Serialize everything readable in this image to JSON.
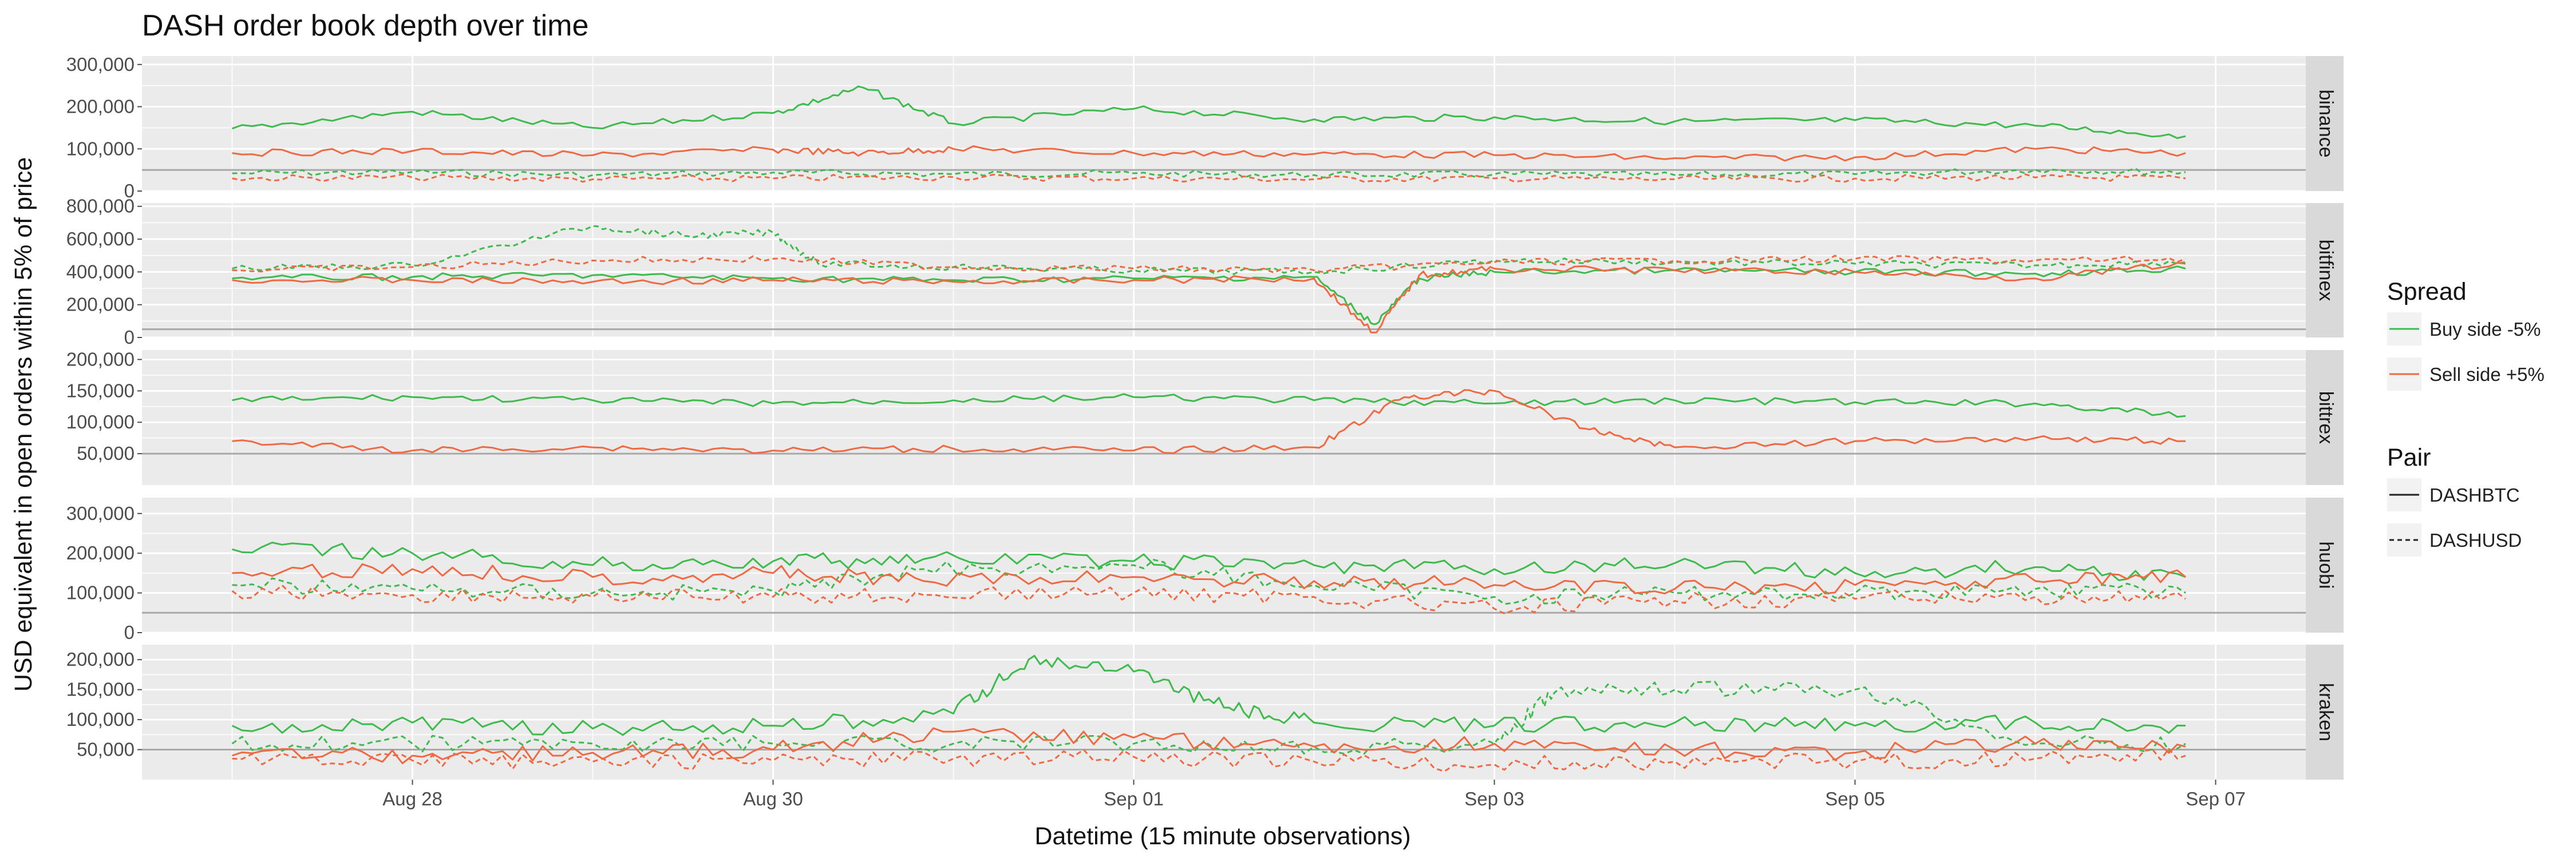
{
  "chart_data": {
    "type": "line",
    "title": "DASH  order book depth over time",
    "xlabel": "Datetime (15 minute observations)",
    "ylabel": "USD equivalent in open orders within 5% of price",
    "x_range": [
      "2018-08-26T12:00",
      "2018-09-07T12:00"
    ],
    "x_ticks": [
      {
        "date": "2018-08-28",
        "label": "Aug 28"
      },
      {
        "date": "2018-08-30",
        "label": "Aug 30"
      },
      {
        "date": "2018-09-01",
        "label": "Sep 01"
      },
      {
        "date": "2018-09-03",
        "label": "Sep 03"
      },
      {
        "date": "2018-09-05",
        "label": "Sep 05"
      },
      {
        "date": "2018-09-07",
        "label": "Sep 07"
      }
    ],
    "reference_line": 50000,
    "colors": {
      "buy": "#3dbb4d",
      "sell": "#ef6a43",
      "reference": "#a8a8a8"
    },
    "legend": {
      "spread_title": "Spread",
      "spread_items": [
        {
          "key": "buy",
          "label": "Buy side -5%"
        },
        {
          "key": "sell",
          "label": "Sell side +5%"
        }
      ],
      "pair_title": "Pair",
      "pair_items": [
        {
          "key": "solid",
          "label": "DASHBTC"
        },
        {
          "key": "dashed",
          "label": "DASHUSD"
        }
      ]
    },
    "panels": [
      {
        "exchange": "binance",
        "ylim": [
          0,
          320000
        ],
        "yticks": [
          0,
          100000,
          200000,
          300000
        ],
        "ytick_labels": [
          "0",
          "100,000",
          "200,000",
          "300,000"
        ],
        "series": [
          {
            "spread": "buy",
            "pair": "DASHBTC",
            "x": [
              "2018-08-27",
              "2018-08-28",
              "2018-08-29",
              "2018-08-30",
              "2018-08-30T12:00",
              "2018-08-31",
              "2018-09-01",
              "2018-09-02",
              "2018-09-03",
              "2018-09-04",
              "2018-09-05",
              "2018-09-06",
              "2018-09-06T20:00"
            ],
            "y": [
              148000,
              188000,
              150000,
              185000,
              245000,
              160000,
              195000,
              170000,
              175000,
              165000,
              168000,
              155000,
              130000
            ]
          },
          {
            "spread": "sell",
            "pair": "DASHBTC",
            "x": [
              "2018-08-27",
              "2018-08-28",
              "2018-08-29",
              "2018-08-30",
              "2018-08-30T12:00",
              "2018-08-31",
              "2018-09-01",
              "2018-09-02",
              "2018-09-03",
              "2018-09-04",
              "2018-09-05",
              "2018-09-06",
              "2018-09-06T20:00"
            ],
            "y": [
              90000,
              95000,
              85000,
              98000,
              90000,
              100000,
              90000,
              88000,
              85000,
              78000,
              80000,
              100000,
              90000
            ]
          },
          {
            "spread": "buy",
            "pair": "DASHUSD",
            "x": [
              "2018-08-27",
              "2018-08-28",
              "2018-08-29",
              "2018-08-30",
              "2018-08-31",
              "2018-09-01",
              "2018-09-02",
              "2018-09-03",
              "2018-09-04",
              "2018-09-05",
              "2018-09-06",
              "2018-09-06T20:00"
            ],
            "y": [
              42000,
              45000,
              38000,
              44000,
              40000,
              42000,
              38000,
              40000,
              38000,
              40000,
              50000,
              45000
            ]
          },
          {
            "spread": "sell",
            "pair": "DASHUSD",
            "x": [
              "2018-08-27",
              "2018-08-28",
              "2018-08-29",
              "2018-08-30",
              "2018-08-31",
              "2018-09-01",
              "2018-09-02",
              "2018-09-03",
              "2018-09-04",
              "2018-09-05",
              "2018-09-06",
              "2018-09-06T20:00"
            ],
            "y": [
              30000,
              32000,
              28000,
              30000,
              33000,
              30000,
              28000,
              30000,
              28000,
              30000,
              32000,
              30000
            ]
          }
        ]
      },
      {
        "exchange": "bitfinex",
        "ylim": [
          0,
          820000
        ],
        "yticks": [
          0,
          200000,
          400000,
          600000,
          800000
        ],
        "ytick_labels": [
          "0",
          "200,000",
          "400,000",
          "600,000",
          "800,000"
        ],
        "series": [
          {
            "spread": "buy",
            "pair": "DASHBTC",
            "x": [
              "2018-08-27",
              "2018-08-28",
              "2018-08-29",
              "2018-08-30",
              "2018-08-31",
              "2018-09-01",
              "2018-09-02",
              "2018-09-02T08:00",
              "2018-09-02T14:00",
              "2018-09-03",
              "2018-09-04",
              "2018-09-05",
              "2018-09-06",
              "2018-09-06T20:00"
            ],
            "y": [
              360000,
              370000,
              380000,
              360000,
              350000,
              360000,
              370000,
              80000,
              360000,
              400000,
              410000,
              400000,
              390000,
              420000
            ]
          },
          {
            "spread": "sell",
            "pair": "DASHBTC",
            "x": [
              "2018-08-27",
              "2018-08-28",
              "2018-08-29",
              "2018-08-30",
              "2018-08-31",
              "2018-09-01",
              "2018-09-02",
              "2018-09-02T08:00",
              "2018-09-02T14:00",
              "2018-09-03",
              "2018-09-04",
              "2018-09-05",
              "2018-09-06",
              "2018-09-06T20:00"
            ],
            "y": [
              350000,
              350000,
              340000,
              350000,
              340000,
              350000,
              360000,
              30000,
              380000,
              420000,
              410000,
              400000,
              360000,
              450000
            ]
          },
          {
            "spread": "buy",
            "pair": "DASHUSD",
            "x": [
              "2018-08-27",
              "2018-08-28",
              "2018-08-29",
              "2018-08-29T12:00",
              "2018-08-30",
              "2018-08-30T06:00",
              "2018-08-31",
              "2018-09-01",
              "2018-09-02",
              "2018-09-03",
              "2018-09-04",
              "2018-09-05",
              "2018-09-06",
              "2018-09-06T20:00"
            ],
            "y": [
              420000,
              440000,
              680000,
              620000,
              640000,
              450000,
              430000,
              410000,
              400000,
              470000,
              460000,
              450000,
              440000,
              460000
            ]
          },
          {
            "spread": "sell",
            "pair": "DASHUSD",
            "x": [
              "2018-08-27",
              "2018-08-28",
              "2018-08-29",
              "2018-08-30",
              "2018-08-31",
              "2018-09-01",
              "2018-09-02",
              "2018-09-03",
              "2018-09-04",
              "2018-09-05",
              "2018-09-06",
              "2018-09-06T20:00"
            ],
            "y": [
              410000,
              430000,
              470000,
              480000,
              430000,
              420000,
              410000,
              460000,
              470000,
              480000,
              470000,
              480000
            ]
          }
        ]
      },
      {
        "exchange": "bittrex",
        "ylim": [
          0,
          215000
        ],
        "yticks": [
          50000,
          100000,
          150000,
          200000
        ],
        "ytick_labels": [
          "50,000",
          "100,000",
          "150,000",
          "200,000"
        ],
        "series": [
          {
            "spread": "buy",
            "pair": "DASHBTC",
            "x": [
              "2018-08-27",
              "2018-08-28",
              "2018-08-29",
              "2018-08-30",
              "2018-08-31",
              "2018-09-01",
              "2018-09-02",
              "2018-09-03",
              "2018-09-04",
              "2018-09-05",
              "2018-09-06",
              "2018-09-06T20:00"
            ],
            "y": [
              135000,
              140000,
              135000,
              130000,
              135000,
              140000,
              135000,
              130000,
              135000,
              132000,
              130000,
              110000
            ]
          },
          {
            "spread": "sell",
            "pair": "DASHBTC",
            "x": [
              "2018-08-27",
              "2018-08-28",
              "2018-08-29",
              "2018-08-30",
              "2018-08-31",
              "2018-09-01",
              "2018-09-02",
              "2018-09-02T12:00",
              "2018-09-03",
              "2018-09-03T12:00",
              "2018-09-04",
              "2018-09-05",
              "2018-09-06",
              "2018-09-06T20:00"
            ],
            "y": [
              70000,
              55000,
              60000,
              55000,
              58000,
              55000,
              60000,
              140000,
              150000,
              90000,
              60000,
              70000,
              75000,
              70000
            ]
          }
        ]
      },
      {
        "exchange": "huobi",
        "ylim": [
          0,
          340000
        ],
        "yticks": [
          0,
          100000,
          200000,
          300000
        ],
        "ytick_labels": [
          "0",
          "100,000",
          "200,000",
          "300,000"
        ],
        "series": [
          {
            "spread": "buy",
            "pair": "DASHBTC",
            "x": [
              "2018-08-27",
              "2018-08-28",
              "2018-08-29",
              "2018-08-30",
              "2018-08-30T20:00",
              "2018-09-01",
              "2018-09-02",
              "2018-09-03",
              "2018-09-04",
              "2018-09-05",
              "2018-09-06",
              "2018-09-06T20:00"
            ],
            "y": [
              210000,
              200000,
              170000,
              180000,
              185000,
              180000,
              170000,
              160000,
              175000,
              150000,
              165000,
              140000
            ]
          },
          {
            "spread": "sell",
            "pair": "DASHBTC",
            "x": [
              "2018-08-27",
              "2018-08-28",
              "2018-08-29",
              "2018-08-30",
              "2018-08-30T20:00",
              "2018-09-01",
              "2018-09-02",
              "2018-09-03",
              "2018-09-04",
              "2018-09-05",
              "2018-09-06",
              "2018-09-06T20:00"
            ],
            "y": [
              150000,
              160000,
              140000,
              150000,
              130000,
              140000,
              130000,
              120000,
              110000,
              120000,
              130000,
              140000
            ]
          },
          {
            "spread": "buy",
            "pair": "DASHUSD",
            "x": [
              "2018-08-27",
              "2018-08-28",
              "2018-08-29",
              "2018-08-30",
              "2018-08-30T20:00",
              "2018-09-01",
              "2018-09-02",
              "2018-09-03",
              "2018-09-04",
              "2018-09-05",
              "2018-09-06",
              "2018-09-06T20:00"
            ],
            "y": [
              120000,
              110000,
              100000,
              105000,
              160000,
              170000,
              120000,
              90000,
              100000,
              100000,
              110000,
              100000
            ]
          },
          {
            "spread": "sell",
            "pair": "DASHUSD",
            "x": [
              "2018-08-27",
              "2018-08-28",
              "2018-08-29",
              "2018-08-30",
              "2018-08-30T20:00",
              "2018-09-01",
              "2018-09-02",
              "2018-09-03",
              "2018-09-04",
              "2018-09-05",
              "2018-09-06",
              "2018-09-06T20:00"
            ],
            "y": [
              105000,
              95000,
              90000,
              90000,
              95000,
              100000,
              90000,
              60000,
              80000,
              85000,
              90000,
              85000
            ]
          }
        ]
      },
      {
        "exchange": "kraken",
        "ylim": [
          0,
          225000
        ],
        "yticks": [
          50000,
          100000,
          150000,
          200000
        ],
        "ytick_labels": [
          "50,000",
          "100,000",
          "150,000",
          "200,000"
        ],
        "series": [
          {
            "spread": "buy",
            "pair": "DASHBTC",
            "x": [
              "2018-08-27",
              "2018-08-28",
              "2018-08-29",
              "2018-08-30",
              "2018-08-31",
              "2018-08-31T10:00",
              "2018-09-01",
              "2018-09-01T12:00",
              "2018-09-02",
              "2018-09-03",
              "2018-09-04",
              "2018-09-05",
              "2018-09-06",
              "2018-09-06T20:00"
            ],
            "y": [
              90000,
              95000,
              85000,
              90000,
              110000,
              200000,
              180000,
              120000,
              95000,
              90000,
              95000,
              90000,
              95000,
              90000
            ]
          },
          {
            "spread": "sell",
            "pair": "DASHBTC",
            "x": [
              "2018-08-27",
              "2018-08-28",
              "2018-08-29",
              "2018-08-30",
              "2018-08-31",
              "2018-09-01",
              "2018-09-02",
              "2018-09-03",
              "2018-09-04",
              "2018-09-05",
              "2018-09-06",
              "2018-09-06T20:00"
            ],
            "y": [
              40000,
              40000,
              45000,
              50000,
              80000,
              70000,
              55000,
              60000,
              50000,
              45000,
              60000,
              55000
            ]
          },
          {
            "spread": "buy",
            "pair": "DASHUSD",
            "x": [
              "2018-08-27",
              "2018-08-28",
              "2018-08-29",
              "2018-08-30",
              "2018-08-31",
              "2018-09-01",
              "2018-09-02",
              "2018-09-03",
              "2018-09-03T08:00",
              "2018-09-04",
              "2018-09-05",
              "2018-09-06",
              "2018-09-06T20:00"
            ],
            "y": [
              60000,
              60000,
              60000,
              60000,
              60000,
              60000,
              55000,
              60000,
              145000,
              150000,
              150000,
              60000,
              60000
            ]
          },
          {
            "spread": "sell",
            "pair": "DASHUSD",
            "x": [
              "2018-08-27",
              "2018-08-28",
              "2018-08-29",
              "2018-08-30",
              "2018-08-31",
              "2018-09-01",
              "2018-09-02",
              "2018-09-03",
              "2018-09-04",
              "2018-09-05",
              "2018-09-06",
              "2018-09-06T20:00"
            ],
            "y": [
              35000,
              32000,
              30000,
              32000,
              35000,
              38000,
              30000,
              25000,
              30000,
              30000,
              35000,
              40000
            ]
          }
        ]
      }
    ]
  }
}
